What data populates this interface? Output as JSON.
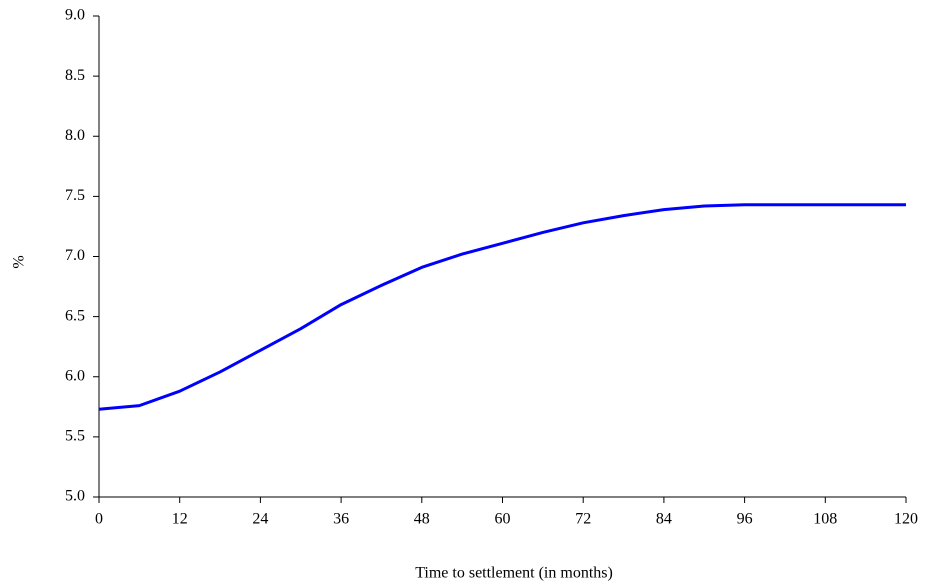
{
  "chart_data": {
    "type": "line",
    "x_label": "Time to settlement (in months)",
    "y_label": "%",
    "x": [
      0,
      6,
      12,
      18,
      24,
      30,
      36,
      42,
      48,
      54,
      60,
      66,
      72,
      78,
      84,
      90,
      96,
      102,
      108,
      114,
      120
    ],
    "values": [
      5.73,
      5.76,
      5.88,
      6.04,
      6.22,
      6.4,
      6.6,
      6.76,
      6.91,
      7.02,
      7.11,
      7.2,
      7.28,
      7.34,
      7.39,
      7.42,
      7.43,
      7.43,
      7.43,
      7.43,
      7.43
    ],
    "color": "#0000ff",
    "xlim": [
      0,
      120
    ],
    "xticks": [
      0,
      12,
      24,
      36,
      48,
      60,
      72,
      84,
      96,
      108,
      120
    ],
    "ylim": [
      5,
      9
    ],
    "yticks": [
      {
        "value": 5,
        "label": "5.0"
      },
      5.5,
      {
        "value": 6,
        "label": "6.0"
      },
      6.5,
      {
        "value": 7,
        "label": "7.0"
      },
      7.5,
      {
        "value": 8,
        "label": "8.0"
      },
      8.5,
      {
        "value": 9,
        "label": "9.0"
      }
    ],
    "grid": false
  }
}
